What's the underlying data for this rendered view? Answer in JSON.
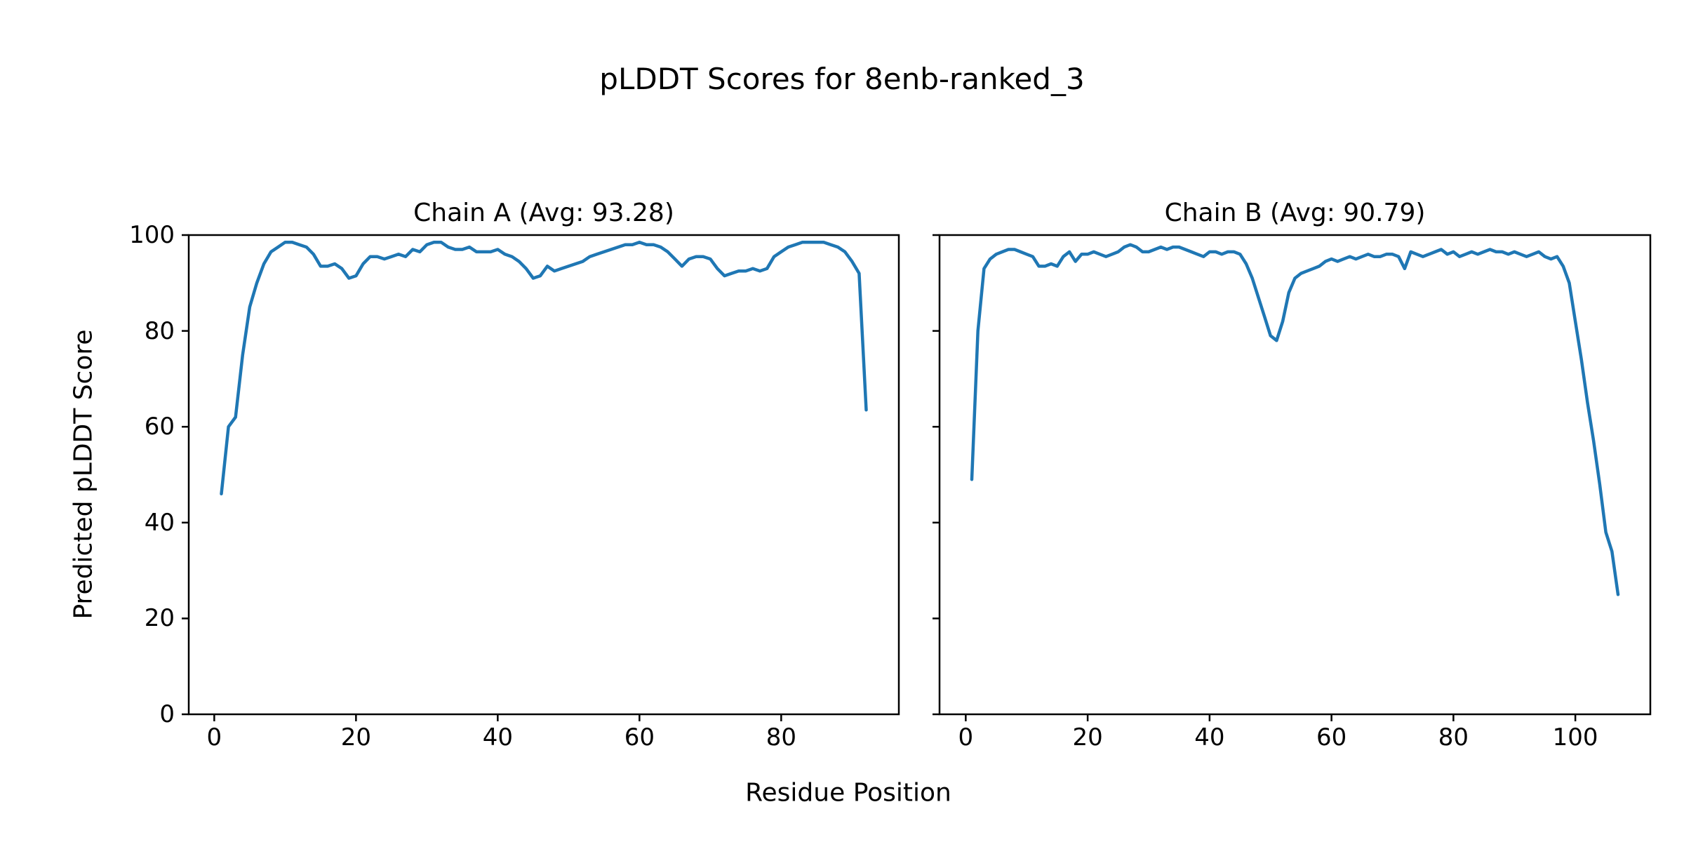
{
  "figure": {
    "title": "pLDDT Scores for 8enb-ranked_3",
    "xlabel": "Residue Position",
    "ylabel": "Predicted pLDDT Score"
  },
  "chart_data": [
    {
      "type": "line",
      "title": "Chain A (Avg: 93.28)",
      "avg": 93.28,
      "line_color": "#1f77b4",
      "xlim": [
        -3.6,
        96.6
      ],
      "ylim": [
        0,
        100
      ],
      "xticks": [
        0,
        20,
        40,
        60,
        80
      ],
      "yticks": [
        0,
        20,
        40,
        60,
        80,
        100
      ],
      "grid": false,
      "series": [
        {
          "name": "Chain A pLDDT",
          "x_start": 1,
          "values": [
            46,
            60,
            62,
            75,
            85,
            90,
            94,
            96.5,
            97.5,
            98.5,
            98.5,
            98,
            97.5,
            96,
            93.5,
            93.5,
            94,
            93,
            91,
            91.5,
            94,
            95.5,
            95.5,
            95,
            95.5,
            96,
            95.5,
            97,
            96.5,
            98,
            98.5,
            98.5,
            97.5,
            97,
            97,
            97.5,
            96.5,
            96.5,
            96.5,
            97,
            96,
            95.5,
            94.5,
            93,
            91,
            91.5,
            93.5,
            92.5,
            93,
            93.5,
            94,
            94.5,
            95.5,
            96,
            96.5,
            97,
            97.5,
            98,
            98,
            98.5,
            98,
            98,
            97.5,
            96.5,
            95,
            93.5,
            95,
            95.5,
            95.5,
            95,
            93,
            91.5,
            92,
            92.5,
            92.5,
            93,
            92.5,
            93,
            95.5,
            96.5,
            97.5,
            98,
            98.5,
            98.5,
            98.5,
            98.5,
            98,
            97.5,
            96.5,
            94.5,
            92,
            63.5
          ]
        }
      ]
    },
    {
      "type": "line",
      "title": "Chain B (Avg: 90.79)",
      "avg": 90.79,
      "line_color": "#1f77b4",
      "xlim": [
        -4.3,
        112.3
      ],
      "ylim": [
        0,
        100
      ],
      "xticks": [
        0,
        20,
        40,
        60,
        80,
        100
      ],
      "yticks": [
        0,
        20,
        40,
        60,
        80,
        100
      ],
      "grid": false,
      "series": [
        {
          "name": "Chain B pLDDT",
          "x_start": 1,
          "values": [
            49,
            80,
            93,
            95,
            96,
            96.5,
            97,
            97,
            96.5,
            96,
            95.5,
            93.5,
            93.5,
            94,
            93.5,
            95.5,
            96.5,
            94.5,
            96,
            96,
            96.5,
            96,
            95.5,
            96,
            96.5,
            97.5,
            98,
            97.5,
            96.5,
            96.5,
            97,
            97.5,
            97,
            97.5,
            97.5,
            97,
            96.5,
            96,
            95.5,
            96.5,
            96.5,
            96,
            96.5,
            96.5,
            96,
            94,
            91,
            87,
            83,
            79,
            78,
            82,
            88,
            91,
            92,
            92.5,
            93,
            93.5,
            94.5,
            95,
            94.5,
            95,
            95.5,
            95,
            95.5,
            96,
            95.5,
            95.5,
            96,
            96,
            95.5,
            93,
            96.5,
            96,
            95.5,
            96,
            96.5,
            97,
            96,
            96.5,
            95.5,
            96,
            96.5,
            96,
            96.5,
            97,
            96.5,
            96.5,
            96,
            96.5,
            96,
            95.5,
            96,
            96.5,
            95.5,
            95,
            95.5,
            93.5,
            90,
            82,
            74,
            65,
            57,
            48,
            38,
            34,
            25
          ]
        }
      ]
    }
  ]
}
